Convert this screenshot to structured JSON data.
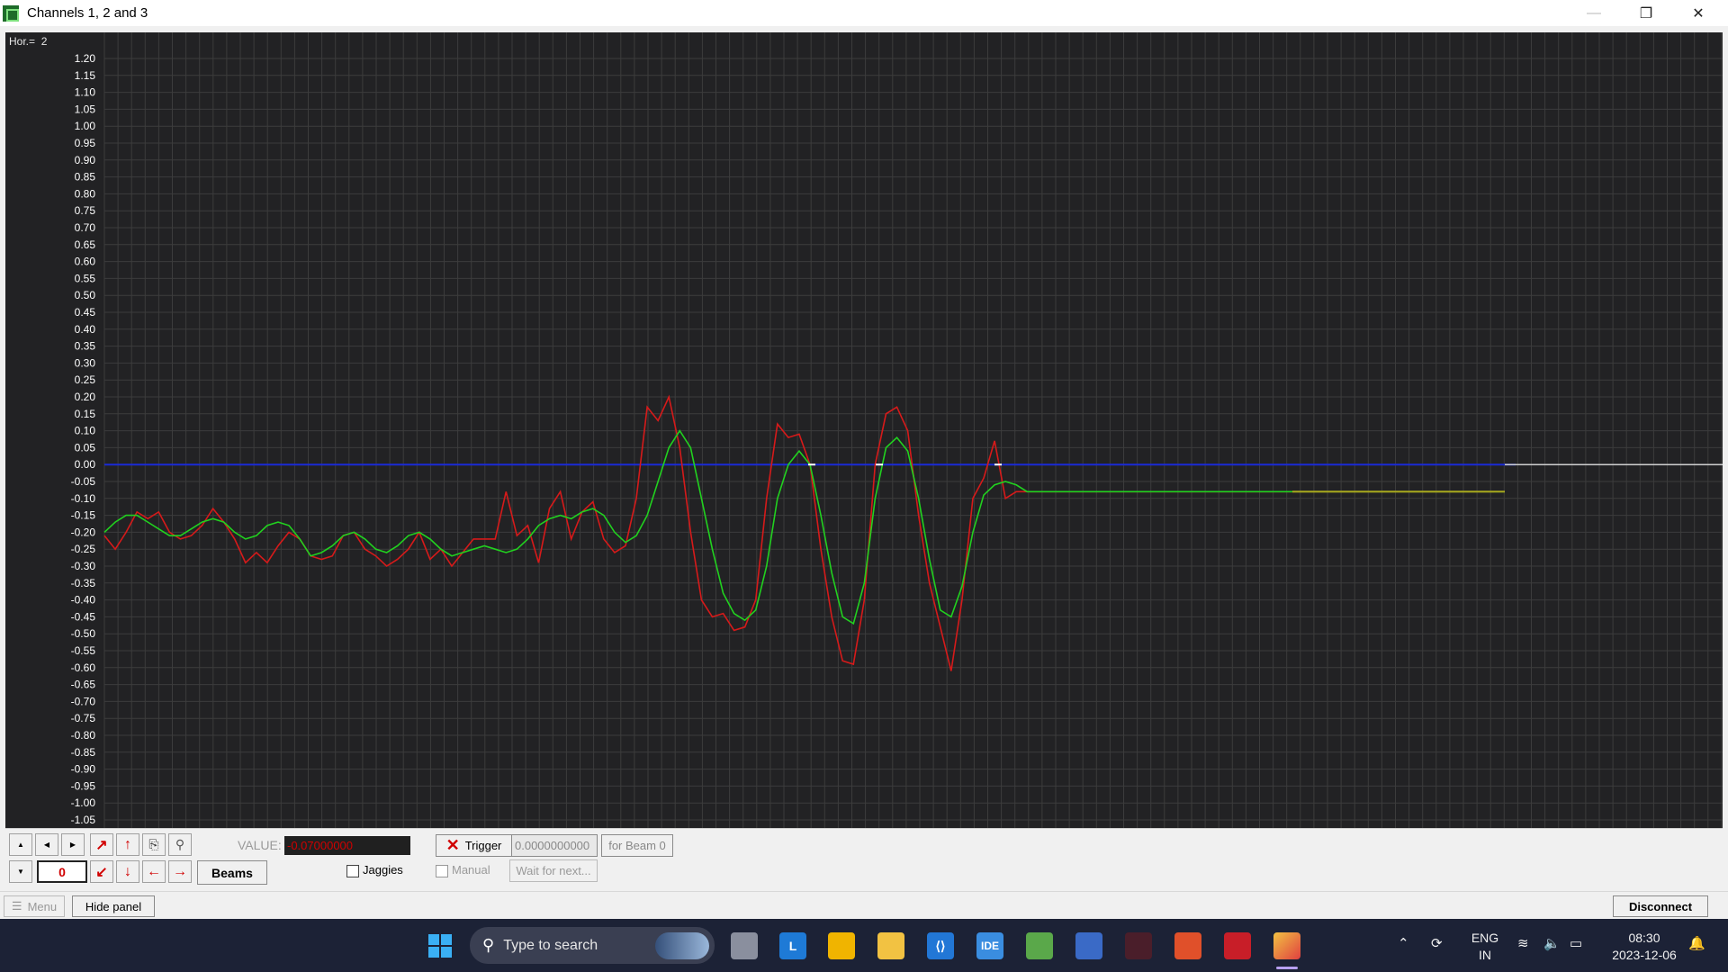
{
  "window": {
    "title": "Channels 1, 2 and 3",
    "minimize_icon": "minimize-icon",
    "restore_icon": "restore-icon",
    "close_icon": "close-icon"
  },
  "scope": {
    "hor_label": "Hor.=",
    "hor_value": "2",
    "y_ticks": [
      "1.20",
      "1.15",
      "1.10",
      "1.05",
      "1.00",
      "0.95",
      "0.90",
      "0.85",
      "0.80",
      "0.75",
      "0.70",
      "0.65",
      "0.60",
      "0.55",
      "0.50",
      "0.45",
      "0.40",
      "0.35",
      "0.30",
      "0.25",
      "0.20",
      "0.15",
      "0.10",
      "0.05",
      "0.00",
      "-0.05",
      "-0.10",
      "-0.15",
      "-0.20",
      "-0.25",
      "-0.30",
      "-0.35",
      "-0.40",
      "-0.45",
      "-0.50",
      "-0.55",
      "-0.60",
      "-0.65",
      "-0.70",
      "-0.75",
      "-0.80",
      "-0.85",
      "-0.90",
      "-0.95",
      "-1.00",
      "-1.05"
    ],
    "colors": {
      "background": "#222224",
      "grid": "#3c3c3c",
      "green": "#21d11f",
      "red": "#d61a1a",
      "blue": "#1a2ad6",
      "yellow": "#a8a81e",
      "axis_text": "#ffffff"
    }
  },
  "chart_data": {
    "type": "line",
    "ylim": [
      -1.05,
      1.2
    ],
    "series": [
      {
        "values": [
          -0.2,
          -0.17,
          -0.15,
          -0.15,
          -0.17,
          -0.19,
          -0.21,
          -0.21,
          -0.19,
          -0.17,
          -0.16,
          -0.17,
          -0.2,
          -0.22,
          -0.21,
          -0.18,
          -0.17,
          -0.18,
          -0.22,
          -0.27,
          -0.26,
          -0.24,
          -0.21,
          -0.2,
          -0.22,
          -0.25,
          -0.26,
          -0.24,
          -0.21,
          -0.2,
          -0.22,
          -0.25,
          -0.27,
          -0.26,
          -0.25,
          -0.24,
          -0.25,
          -0.26,
          -0.25,
          -0.22,
          -0.18,
          -0.16,
          -0.15,
          -0.16,
          -0.14,
          -0.13,
          -0.15,
          -0.2,
          -0.23,
          -0.21,
          -0.15,
          -0.05,
          0.05,
          0.1,
          0.05,
          -0.1,
          -0.25,
          -0.38,
          -0.44,
          -0.46,
          -0.43,
          -0.3,
          -0.1,
          0.0,
          0.04,
          0.0,
          -0.15,
          -0.32,
          -0.45,
          -0.47,
          -0.35,
          -0.1,
          0.05,
          0.08,
          0.04,
          -0.1,
          -0.28,
          -0.43,
          -0.45,
          -0.36,
          -0.2,
          -0.09,
          -0.06,
          -0.05,
          -0.06,
          -0.08,
          -0.08,
          -0.08,
          -0.08,
          -0.08,
          -0.08,
          -0.08,
          -0.08,
          -0.08,
          -0.08,
          -0.08,
          -0.08,
          -0.08,
          -0.08,
          -0.08,
          -0.08,
          -0.08,
          -0.08,
          -0.08,
          -0.08,
          -0.08,
          -0.08,
          -0.08,
          -0.08,
          -0.08,
          -0.08,
          -0.08,
          -0.08,
          -0.08,
          -0.08,
          -0.08,
          -0.08,
          -0.08,
          -0.08,
          -0.08,
          -0.08,
          -0.08,
          -0.08,
          -0.08,
          -0.08,
          -0.08,
          -0.08,
          -0.08,
          -0.08,
          -0.08
        ]
      },
      {
        "values": [
          -0.21,
          -0.25,
          -0.2,
          -0.14,
          -0.16,
          -0.14,
          -0.2,
          -0.22,
          -0.21,
          -0.18,
          -0.13,
          -0.17,
          -0.22,
          -0.29,
          -0.26,
          -0.29,
          -0.24,
          -0.2,
          -0.22,
          -0.27,
          -0.28,
          -0.27,
          -0.21,
          -0.2,
          -0.25,
          -0.27,
          -0.3,
          -0.28,
          -0.25,
          -0.2,
          -0.28,
          -0.25,
          -0.3,
          -0.26,
          -0.22,
          -0.22,
          -0.22,
          -0.08,
          -0.21,
          -0.18,
          -0.29,
          -0.13,
          -0.08,
          -0.22,
          -0.14,
          -0.11,
          -0.22,
          -0.26,
          -0.24,
          -0.1,
          0.17,
          0.13,
          0.2,
          0.05,
          -0.2,
          -0.4,
          -0.45,
          -0.44,
          -0.49,
          -0.48,
          -0.4,
          -0.1,
          0.12,
          0.08,
          0.09,
          0.0,
          -0.25,
          -0.45,
          -0.58,
          -0.59,
          -0.4,
          0.0,
          0.15,
          0.17,
          0.1,
          -0.15,
          -0.35,
          -0.48,
          -0.61,
          -0.4,
          -0.1,
          -0.04,
          0.07,
          -0.1,
          -0.08,
          -0.08,
          -0.08,
          -0.08,
          -0.08,
          -0.08,
          -0.08,
          -0.08,
          -0.08,
          -0.08,
          -0.08,
          -0.08,
          -0.08,
          -0.08,
          -0.08,
          -0.08,
          -0.08,
          -0.08,
          -0.08,
          -0.08,
          -0.08,
          -0.08,
          -0.08,
          -0.08,
          -0.08,
          -0.08,
          -0.08,
          -0.08,
          -0.08,
          -0.08,
          -0.08,
          -0.08,
          -0.08,
          -0.08,
          -0.08,
          -0.08,
          -0.08,
          -0.08,
          -0.08,
          -0.08,
          -0.08,
          -0.08,
          -0.08,
          -0.08,
          -0.08
        ]
      },
      {
        "values": [
          0,
          0,
          0,
          0,
          0,
          0,
          0,
          0,
          0,
          0,
          0,
          0,
          0,
          0,
          0,
          0,
          0,
          0,
          0,
          0,
          0,
          0,
          0,
          0,
          0,
          0,
          0,
          0,
          0,
          0,
          0,
          0,
          0,
          0,
          0,
          0,
          0,
          0,
          0,
          0,
          0,
          0,
          0,
          0,
          0,
          0,
          0,
          0,
          0,
          0,
          0,
          0,
          0,
          0,
          0,
          0,
          0,
          0,
          0,
          0,
          0,
          0,
          0,
          0,
          0,
          0,
          0,
          0,
          0,
          0,
          0,
          0,
          0,
          0,
          0,
          0,
          0,
          0,
          0,
          0,
          0,
          0,
          0,
          0,
          0,
          0,
          0,
          0,
          0,
          0,
          0,
          0,
          0,
          0,
          0,
          0,
          0,
          0,
          0,
          0,
          0,
          0,
          0,
          0,
          0,
          0,
          0,
          0,
          0,
          0,
          0,
          0,
          0,
          0,
          0,
          0,
          0,
          0,
          0,
          0,
          0,
          0,
          0,
          0,
          0,
          0,
          0,
          0,
          0,
          0,
          0
        ]
      }
    ]
  },
  "controls": {
    "value_label": "VALUE:",
    "value": "-0.07000000",
    "counter": "0",
    "beams_button": "Beams",
    "jaggies_label": "Jaggies",
    "trigger_label": "Trigger",
    "trigger_value": "0.0000000000",
    "for_beam_label": "for Beam 0",
    "manual_label": "Manual",
    "wait_label": "Wait for next..."
  },
  "bottombar": {
    "menu_label": "Menu",
    "hide_panel_label": "Hide panel",
    "disconnect_label": "Disconnect"
  },
  "taskbar": {
    "search_placeholder": "Type to search",
    "lang_line1": "ENG",
    "lang_line2": "IN",
    "time": "08:30",
    "date": "2023-12-06"
  }
}
